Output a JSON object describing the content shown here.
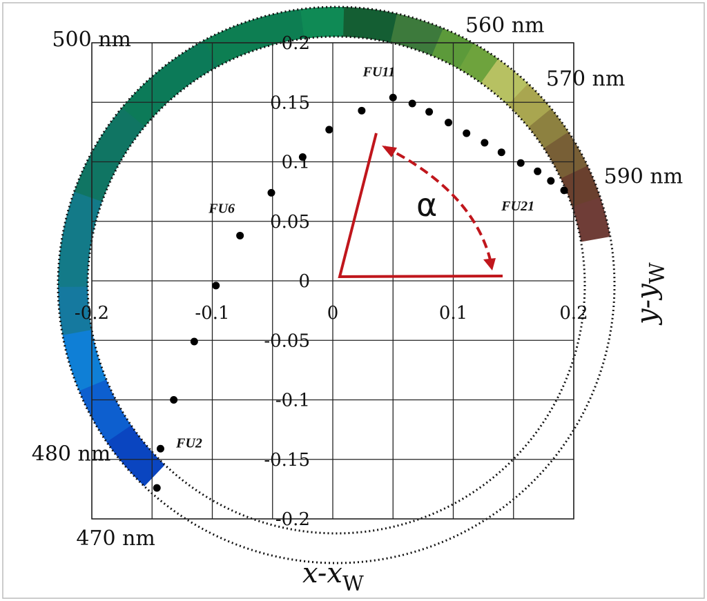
{
  "chart_data": {
    "type": "scatter",
    "title": "",
    "xlim": [
      -0.2,
      0.2
    ],
    "ylim": [
      -0.2,
      0.2
    ],
    "x_ticks": [
      "-0.2",
      "-0.1",
      "0",
      "0.1",
      "0.2"
    ],
    "y_ticks": [
      "0.2",
      "0.15",
      "0.1",
      "0.05",
      "0",
      "-0.05",
      "-0.1",
      "-0.15",
      "-0.2"
    ],
    "xlabel": {
      "main": "x-x",
      "sub": "W"
    },
    "ylabel": {
      "main": "y-y",
      "sub": "W"
    },
    "grid": true,
    "points": [
      {
        "x": -0.146,
        "y": -0.174
      },
      {
        "x": -0.143,
        "y": -0.141
      },
      {
        "x": -0.132,
        "y": -0.1
      },
      {
        "x": -0.115,
        "y": -0.051
      },
      {
        "x": -0.097,
        "y": -0.004
      },
      {
        "x": -0.077,
        "y": 0.038
      },
      {
        "x": -0.051,
        "y": 0.074
      },
      {
        "x": -0.025,
        "y": 0.104
      },
      {
        "x": -0.003,
        "y": 0.127
      },
      {
        "x": 0.024,
        "y": 0.143
      },
      {
        "x": 0.05,
        "y": 0.154
      },
      {
        "x": 0.066,
        "y": 0.149
      },
      {
        "x": 0.08,
        "y": 0.142
      },
      {
        "x": 0.096,
        "y": 0.133
      },
      {
        "x": 0.111,
        "y": 0.124
      },
      {
        "x": 0.126,
        "y": 0.116
      },
      {
        "x": 0.14,
        "y": 0.108
      },
      {
        "x": 0.156,
        "y": 0.099
      },
      {
        "x": 0.17,
        "y": 0.092
      },
      {
        "x": 0.181,
        "y": 0.084
      },
      {
        "x": 0.192,
        "y": 0.076
      }
    ],
    "point_labels": [
      {
        "text": "FU2",
        "x": -0.13,
        "y": -0.14
      },
      {
        "text": "FU6",
        "x": -0.103,
        "y": 0.057
      },
      {
        "text": "FU11",
        "x": 0.025,
        "y": 0.172
      },
      {
        "text": "FU21",
        "x": 0.14,
        "y": 0.059
      }
    ],
    "wavelength_labels": [
      {
        "text": "470 nm",
        "x": -0.213,
        "y": -0.222
      },
      {
        "text": "480 nm",
        "x": -0.25,
        "y": -0.151
      },
      {
        "text": "500 nm",
        "x": -0.233,
        "y": 0.197
      },
      {
        "text": "560 nm",
        "x": 0.11,
        "y": 0.209
      },
      {
        "text": "570 nm",
        "x": 0.177,
        "y": 0.164
      },
      {
        "text": "590 nm",
        "x": 0.225,
        "y": 0.082
      }
    ],
    "hue_ring": {
      "segments": [
        {
          "color": "#0a45c0",
          "from": 214,
          "to": 226
        },
        {
          "color": "#0d5fcf",
          "from": 202,
          "to": 214
        },
        {
          "color": "#0f7fd6",
          "from": 190,
          "to": 202
        },
        {
          "color": "#15799f",
          "from": 180,
          "to": 190
        },
        {
          "color": "#137a88",
          "from": 160,
          "to": 180
        },
        {
          "color": "#107563",
          "from": 140,
          "to": 160
        },
        {
          "color": "#0c7a58",
          "from": 118,
          "to": 140
        },
        {
          "color": "#0d7e52",
          "from": 97,
          "to": 118
        },
        {
          "color": "#0f8a55",
          "from": 88,
          "to": 97
        },
        {
          "color": "#145e33",
          "from": 77,
          "to": 88
        },
        {
          "color": "#3d7a3c",
          "from": 67,
          "to": 77
        },
        {
          "color": "#5c9a3a",
          "from": 60,
          "to": 67
        },
        {
          "color": "#6ea33d",
          "from": 54,
          "to": 60
        },
        {
          "color": "#b7c162",
          "from": 46,
          "to": 54
        },
        {
          "color": "#a9a650",
          "from": 39,
          "to": 46
        },
        {
          "color": "#8d8140",
          "from": 33,
          "to": 39
        },
        {
          "color": "#785f36",
          "from": 25,
          "to": 33
        },
        {
          "color": "#6a402e",
          "from": 18,
          "to": 25
        },
        {
          "color": "#6f3d37",
          "from": 10,
          "to": 18
        }
      ]
    },
    "angle_annotation": {
      "symbol": "α",
      "color": "#c0161c"
    }
  }
}
